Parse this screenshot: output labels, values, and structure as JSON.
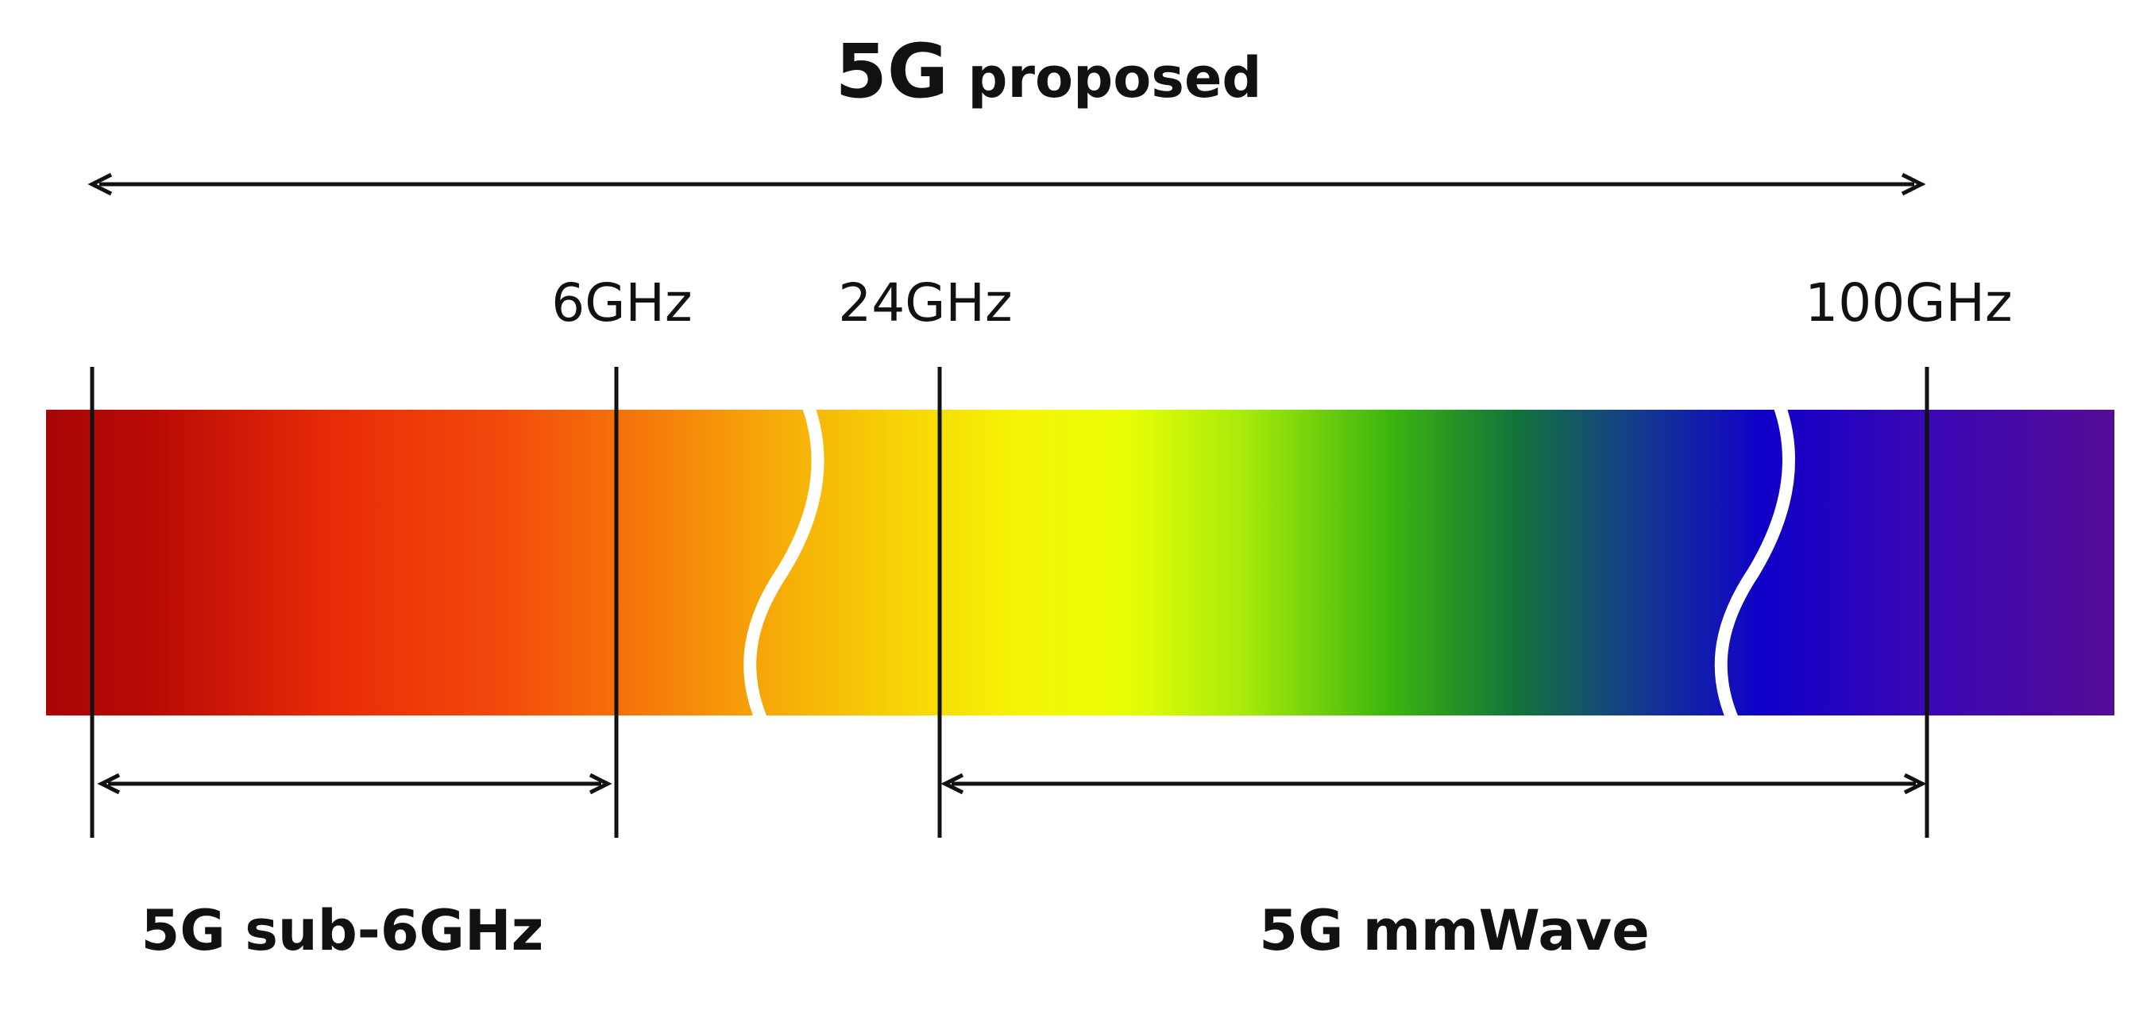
{
  "title": {
    "prefix": "5G",
    "suffix": " proposed"
  },
  "spectrum": {
    "gradient_colors": [
      "#a80505",
      "#c01005",
      "#f03a08",
      "#f4620a",
      "#f5a107",
      "#f7c908",
      "#f7f007",
      "#e8ff05",
      "#9ce80a",
      "#3ab50f",
      "#12703a",
      "#123890",
      "#1100c6",
      "#3e08b2",
      "#560c96"
    ],
    "break_color": "#ffffff",
    "breaks": 2
  },
  "frequency_markers": [
    {
      "label": "6GHz"
    },
    {
      "label": "24GHz"
    },
    {
      "label": "100GHz"
    }
  ],
  "bands": [
    {
      "label": "5G sub-6GHz"
    },
    {
      "label": "5G mmWave"
    }
  ],
  "colors": {
    "line": "#111111",
    "text": "#111111",
    "background": "#ffffff"
  }
}
